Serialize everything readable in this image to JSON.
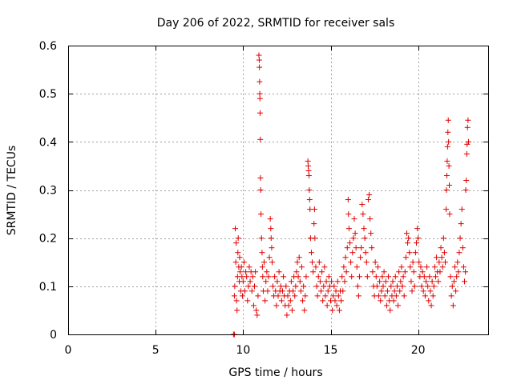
{
  "chart_data": {
    "type": "scatter",
    "title": "Day 206 of 2022, SRMTID for receiver sals",
    "xlabel": "GPS time / hours",
    "ylabel": "SRMTID / TECUs",
    "xlim": [
      0,
      24
    ],
    "ylim": [
      0,
      0.6
    ],
    "xticks": [
      0,
      5,
      10,
      15,
      20
    ],
    "xtick_labels": [
      "0",
      "5",
      "10",
      "15",
      "20"
    ],
    "yticks": [
      0,
      0.1,
      0.2,
      0.3,
      0.4,
      0.5,
      0.6
    ],
    "ytick_labels": [
      "0",
      "0.1",
      "0.2",
      "0.3",
      "0.4",
      "0.5",
      "0.6"
    ],
    "grid": true,
    "marker_color": "#e00000",
    "marker": "plus",
    "series": [
      {
        "name": "SRMTID",
        "points": [
          [
            9.45,
            0.0
          ],
          [
            9.5,
            0.0
          ],
          [
            9.5,
            0.08
          ],
          [
            9.52,
            0.1
          ],
          [
            9.55,
            0.22
          ],
          [
            9.58,
            0.15
          ],
          [
            9.6,
            0.19
          ],
          [
            9.62,
            0.07
          ],
          [
            9.65,
            0.05
          ],
          [
            9.68,
            0.12
          ],
          [
            9.7,
            0.17
          ],
          [
            9.72,
            0.2
          ],
          [
            9.75,
            0.14
          ],
          [
            9.78,
            0.11
          ],
          [
            9.8,
            0.16
          ],
          [
            9.83,
            0.13
          ],
          [
            9.86,
            0.09
          ],
          [
            9.9,
            0.14
          ],
          [
            9.93,
            0.12
          ],
          [
            9.96,
            0.08
          ],
          [
            10.0,
            0.11
          ],
          [
            10.05,
            0.15
          ],
          [
            10.1,
            0.09
          ],
          [
            10.15,
            0.13
          ],
          [
            10.2,
            0.12
          ],
          [
            10.25,
            0.07
          ],
          [
            10.3,
            0.1
          ],
          [
            10.35,
            0.14
          ],
          [
            10.4,
            0.11
          ],
          [
            10.45,
            0.13
          ],
          [
            10.5,
            0.09
          ],
          [
            10.55,
            0.12
          ],
          [
            10.6,
            0.06
          ],
          [
            10.65,
            0.1
          ],
          [
            10.7,
            0.13
          ],
          [
            10.75,
            0.05
          ],
          [
            10.8,
            0.04
          ],
          [
            10.85,
            0.08
          ],
          [
            10.9,
            0.58
          ],
          [
            10.92,
            0.57
          ],
          [
            10.93,
            0.555
          ],
          [
            10.94,
            0.525
          ],
          [
            10.95,
            0.5
          ],
          [
            10.96,
            0.49
          ],
          [
            10.97,
            0.46
          ],
          [
            10.98,
            0.405
          ],
          [
            10.99,
            0.325
          ],
          [
            11.0,
            0.3
          ],
          [
            11.02,
            0.25
          ],
          [
            11.05,
            0.2
          ],
          [
            11.08,
            0.17
          ],
          [
            11.1,
            0.14
          ],
          [
            11.12,
            0.12
          ],
          [
            11.15,
            0.09
          ],
          [
            11.2,
            0.15
          ],
          [
            11.25,
            0.07
          ],
          [
            11.3,
            0.11
          ],
          [
            11.35,
            0.13
          ],
          [
            11.4,
            0.09
          ],
          [
            11.45,
            0.12
          ],
          [
            11.5,
            0.16
          ],
          [
            11.55,
            0.24
          ],
          [
            11.58,
            0.22
          ],
          [
            11.6,
            0.2
          ],
          [
            11.63,
            0.18
          ],
          [
            11.66,
            0.15
          ],
          [
            11.7,
            0.1
          ],
          [
            11.75,
            0.08
          ],
          [
            11.8,
            0.12
          ],
          [
            11.85,
            0.09
          ],
          [
            11.9,
            0.06
          ],
          [
            11.95,
            0.11
          ],
          [
            12.0,
            0.08
          ],
          [
            12.05,
            0.13
          ],
          [
            12.1,
            0.09
          ],
          [
            12.15,
            0.1
          ],
          [
            12.2,
            0.07
          ],
          [
            12.25,
            0.09
          ],
          [
            12.3,
            0.12
          ],
          [
            12.35,
            0.08
          ],
          [
            12.4,
            0.06
          ],
          [
            12.45,
            0.1
          ],
          [
            12.5,
            0.04
          ],
          [
            12.55,
            0.08
          ],
          [
            12.6,
            0.06
          ],
          [
            12.65,
            0.09
          ],
          [
            12.7,
            0.07
          ],
          [
            12.75,
            0.11
          ],
          [
            12.8,
            0.05
          ],
          [
            12.85,
            0.09
          ],
          [
            12.9,
            0.12
          ],
          [
            12.95,
            0.08
          ],
          [
            13.0,
            0.1
          ],
          [
            13.05,
            0.13
          ],
          [
            13.1,
            0.15
          ],
          [
            13.15,
            0.12
          ],
          [
            13.2,
            0.16
          ],
          [
            13.25,
            0.11
          ],
          [
            13.3,
            0.09
          ],
          [
            13.35,
            0.14
          ],
          [
            13.4,
            0.07
          ],
          [
            13.45,
            0.1
          ],
          [
            13.5,
            0.05
          ],
          [
            13.55,
            0.08
          ],
          [
            13.6,
            0.12
          ],
          [
            13.7,
            0.36
          ],
          [
            13.72,
            0.35
          ],
          [
            13.74,
            0.34
          ],
          [
            13.76,
            0.33
          ],
          [
            13.78,
            0.3
          ],
          [
            13.8,
            0.28
          ],
          [
            13.82,
            0.26
          ],
          [
            13.85,
            0.2
          ],
          [
            13.9,
            0.17
          ],
          [
            13.95,
            0.15
          ],
          [
            14.0,
            0.13
          ],
          [
            14.05,
            0.23
          ],
          [
            14.08,
            0.26
          ],
          [
            14.1,
            0.2
          ],
          [
            14.15,
            0.14
          ],
          [
            14.2,
            0.1
          ],
          [
            14.25,
            0.08
          ],
          [
            14.3,
            0.12
          ],
          [
            14.35,
            0.15
          ],
          [
            14.4,
            0.11
          ],
          [
            14.45,
            0.09
          ],
          [
            14.5,
            0.13
          ],
          [
            14.55,
            0.07
          ],
          [
            14.6,
            0.1
          ],
          [
            14.65,
            0.14
          ],
          [
            14.7,
            0.08
          ],
          [
            14.75,
            0.11
          ],
          [
            14.8,
            0.06
          ],
          [
            14.85,
            0.09
          ],
          [
            14.9,
            0.12
          ],
          [
            14.95,
            0.1
          ],
          [
            15.0,
            0.07
          ],
          [
            15.05,
            0.11
          ],
          [
            15.1,
            0.05
          ],
          [
            15.15,
            0.08
          ],
          [
            15.2,
            0.1
          ],
          [
            15.25,
            0.07
          ],
          [
            15.3,
            0.09
          ],
          [
            15.35,
            0.06
          ],
          [
            15.4,
            0.11
          ],
          [
            15.45,
            0.08
          ],
          [
            15.5,
            0.05
          ],
          [
            15.55,
            0.09
          ],
          [
            15.6,
            0.07
          ],
          [
            15.65,
            0.12
          ],
          [
            15.7,
            0.09
          ],
          [
            15.75,
            0.14
          ],
          [
            15.8,
            0.11
          ],
          [
            15.85,
            0.16
          ],
          [
            15.9,
            0.13
          ],
          [
            15.95,
            0.18
          ],
          [
            16.0,
            0.28
          ],
          [
            16.02,
            0.25
          ],
          [
            16.05,
            0.22
          ],
          [
            16.1,
            0.19
          ],
          [
            16.15,
            0.15
          ],
          [
            16.2,
            0.12
          ],
          [
            16.25,
            0.17
          ],
          [
            16.3,
            0.2
          ],
          [
            16.35,
            0.24
          ],
          [
            16.4,
            0.21
          ],
          [
            16.45,
            0.18
          ],
          [
            16.5,
            0.14
          ],
          [
            16.55,
            0.1
          ],
          [
            16.6,
            0.08
          ],
          [
            16.65,
            0.12
          ],
          [
            16.7,
            0.16
          ],
          [
            16.75,
            0.18
          ],
          [
            16.8,
            0.27
          ],
          [
            16.85,
            0.25
          ],
          [
            16.9,
            0.22
          ],
          [
            16.95,
            0.2
          ],
          [
            17.0,
            0.17
          ],
          [
            17.05,
            0.15
          ],
          [
            17.1,
            0.12
          ],
          [
            17.15,
            0.28
          ],
          [
            17.2,
            0.29
          ],
          [
            17.25,
            0.24
          ],
          [
            17.3,
            0.21
          ],
          [
            17.35,
            0.18
          ],
          [
            17.4,
            0.13
          ],
          [
            17.45,
            0.1
          ],
          [
            17.5,
            0.08
          ],
          [
            17.55,
            0.15
          ],
          [
            17.6,
            0.12
          ],
          [
            17.65,
            0.1
          ],
          [
            17.7,
            0.14
          ],
          [
            17.75,
            0.08
          ],
          [
            17.8,
            0.11
          ],
          [
            17.85,
            0.07
          ],
          [
            17.9,
            0.09
          ],
          [
            17.95,
            0.12
          ],
          [
            18.0,
            0.1
          ],
          [
            18.05,
            0.13
          ],
          [
            18.1,
            0.08
          ],
          [
            18.15,
            0.11
          ],
          [
            18.2,
            0.06
          ],
          [
            18.25,
            0.09
          ],
          [
            18.3,
            0.12
          ],
          [
            18.35,
            0.07
          ],
          [
            18.4,
            0.05
          ],
          [
            18.45,
            0.1
          ],
          [
            18.5,
            0.08
          ],
          [
            18.55,
            0.11
          ],
          [
            18.6,
            0.07
          ],
          [
            18.65,
            0.09
          ],
          [
            18.7,
            0.12
          ],
          [
            18.75,
            0.08
          ],
          [
            18.8,
            0.1
          ],
          [
            18.85,
            0.06
          ],
          [
            18.9,
            0.13
          ],
          [
            18.95,
            0.09
          ],
          [
            19.0,
            0.11
          ],
          [
            19.05,
            0.14
          ],
          [
            19.1,
            0.1
          ],
          [
            19.15,
            0.12
          ],
          [
            19.2,
            0.08
          ],
          [
            19.25,
            0.13
          ],
          [
            19.3,
            0.16
          ],
          [
            19.35,
            0.21
          ],
          [
            19.4,
            0.19
          ],
          [
            19.45,
            0.2
          ],
          [
            19.5,
            0.17
          ],
          [
            19.55,
            0.14
          ],
          [
            19.6,
            0.11
          ],
          [
            19.65,
            0.09
          ],
          [
            19.7,
            0.15
          ],
          [
            19.75,
            0.13
          ],
          [
            19.8,
            0.1
          ],
          [
            19.85,
            0.17
          ],
          [
            19.9,
            0.19
          ],
          [
            19.95,
            0.22
          ],
          [
            20.0,
            0.2
          ],
          [
            20.05,
            0.15
          ],
          [
            20.1,
            0.12
          ],
          [
            20.15,
            0.14
          ],
          [
            20.2,
            0.1
          ],
          [
            20.25,
            0.13
          ],
          [
            20.3,
            0.09
          ],
          [
            20.35,
            0.12
          ],
          [
            20.4,
            0.08
          ],
          [
            20.45,
            0.11
          ],
          [
            20.5,
            0.14
          ],
          [
            20.55,
            0.1
          ],
          [
            20.6,
            0.07
          ],
          [
            20.65,
            0.12
          ],
          [
            20.7,
            0.09
          ],
          [
            20.75,
            0.06
          ],
          [
            20.8,
            0.11
          ],
          [
            20.85,
            0.08
          ],
          [
            20.9,
            0.1
          ],
          [
            20.95,
            0.14
          ],
          [
            21.0,
            0.12
          ],
          [
            21.05,
            0.16
          ],
          [
            21.1,
            0.13
          ],
          [
            21.15,
            0.11
          ],
          [
            21.2,
            0.15
          ],
          [
            21.25,
            0.13
          ],
          [
            21.3,
            0.18
          ],
          [
            21.35,
            0.16
          ],
          [
            21.4,
            0.14
          ],
          [
            21.45,
            0.2
          ],
          [
            21.5,
            0.17
          ],
          [
            21.55,
            0.15
          ],
          [
            21.6,
            0.26
          ],
          [
            21.62,
            0.3
          ],
          [
            21.64,
            0.33
          ],
          [
            21.66,
            0.36
          ],
          [
            21.68,
            0.39
          ],
          [
            21.7,
            0.42
          ],
          [
            21.72,
            0.445
          ],
          [
            21.74,
            0.4
          ],
          [
            21.76,
            0.35
          ],
          [
            21.78,
            0.31
          ],
          [
            21.8,
            0.25
          ],
          [
            21.85,
            0.12
          ],
          [
            21.9,
            0.08
          ],
          [
            21.95,
            0.1
          ],
          [
            22.0,
            0.06
          ],
          [
            22.05,
            0.11
          ],
          [
            22.1,
            0.14
          ],
          [
            22.15,
            0.09
          ],
          [
            22.2,
            0.12
          ],
          [
            22.25,
            0.15
          ],
          [
            22.3,
            0.13
          ],
          [
            22.35,
            0.17
          ],
          [
            22.4,
            0.2
          ],
          [
            22.45,
            0.23
          ],
          [
            22.5,
            0.26
          ],
          [
            22.55,
            0.18
          ],
          [
            22.6,
            0.14
          ],
          [
            22.65,
            0.11
          ],
          [
            22.7,
            0.13
          ],
          [
            22.72,
            0.3
          ],
          [
            22.75,
            0.32
          ],
          [
            22.78,
            0.375
          ],
          [
            22.8,
            0.395
          ],
          [
            22.82,
            0.43
          ],
          [
            22.85,
            0.445
          ],
          [
            22.88,
            0.4
          ]
        ]
      }
    ]
  }
}
